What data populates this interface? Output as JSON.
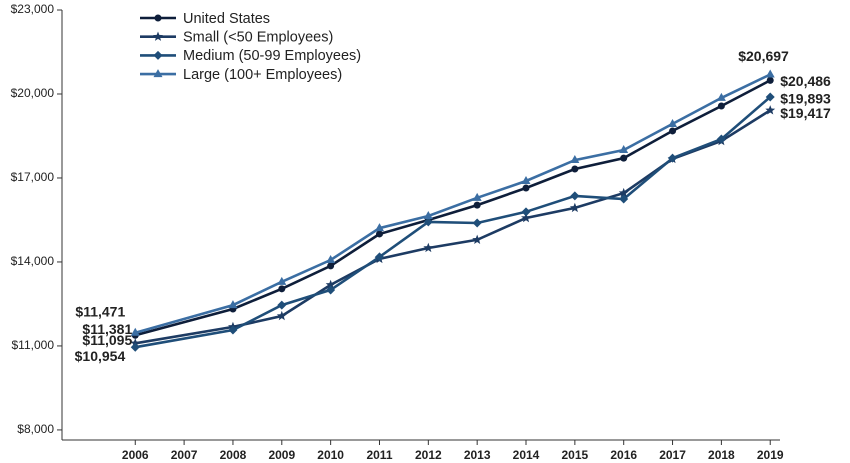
{
  "chart_data": {
    "type": "line",
    "x": [
      2006,
      2008,
      2009,
      2010,
      2011,
      2012,
      2013,
      2014,
      2015,
      2016,
      2017,
      2018,
      2019
    ],
    "xlim": [
      2004.5,
      2019.2
    ],
    "xticks": [
      2006,
      2007,
      2008,
      2009,
      2010,
      2011,
      2012,
      2013,
      2014,
      2015,
      2016,
      2017,
      2018,
      2019
    ],
    "ylim": [
      7640,
      23000
    ],
    "yticks": [
      {
        "value": 8000,
        "label": "$8,000"
      },
      {
        "value": 11000,
        "label": "$11,000"
      },
      {
        "value": 14000,
        "label": "$14,000"
      },
      {
        "value": 17000,
        "label": "$17,000"
      },
      {
        "value": 20000,
        "label": "$20,000"
      },
      {
        "value": 23000,
        "label": "$23,000"
      }
    ],
    "legend": "top-left",
    "series": [
      {
        "name": "United States",
        "color": "#0e1e3a",
        "label_color": "#111111",
        "marker": "circle",
        "values": [
          11381,
          12320,
          13040,
          13860,
          15000,
          15500,
          16030,
          16640,
          17320,
          17710,
          18680,
          19570,
          20486
        ],
        "value_labels": [
          "$11,381",
          null,
          null,
          null,
          null,
          null,
          null,
          null,
          null,
          null,
          null,
          null,
          "$20,486"
        ]
      },
      {
        "name": "Small (<50 Employees)",
        "color": "#1d3b63",
        "label_color": "#1d3b63",
        "marker": "star",
        "values": [
          11095,
          11680,
          12070,
          13180,
          14110,
          14500,
          14790,
          15570,
          15930,
          16460,
          17680,
          18320,
          19417
        ],
        "value_labels": [
          "$11,095",
          null,
          null,
          null,
          null,
          null,
          null,
          null,
          null,
          null,
          null,
          null,
          "$19,417"
        ]
      },
      {
        "name": "Medium (50-99 Employees)",
        "color": "#1f4e79",
        "label_color": "#1f4e79",
        "marker": "diamond",
        "values": [
          10954,
          11570,
          12460,
          13000,
          14180,
          15430,
          15390,
          15790,
          16360,
          16250,
          17710,
          18390,
          19893
        ],
        "value_labels": [
          "$10,954",
          null,
          null,
          null,
          null,
          null,
          null,
          null,
          null,
          null,
          null,
          null,
          "$19,893"
        ]
      },
      {
        "name": "Large (100+ Employees)",
        "color": "#3b6ea3",
        "label_color": "#3b6ea3",
        "marker": "triangle",
        "values": [
          11471,
          12460,
          13290,
          14070,
          15210,
          15640,
          16290,
          16890,
          17640,
          18000,
          18930,
          19860,
          20697
        ],
        "value_labels": [
          "$11,471",
          null,
          null,
          null,
          null,
          null,
          null,
          null,
          null,
          null,
          null,
          null,
          "$20,697"
        ]
      }
    ]
  }
}
